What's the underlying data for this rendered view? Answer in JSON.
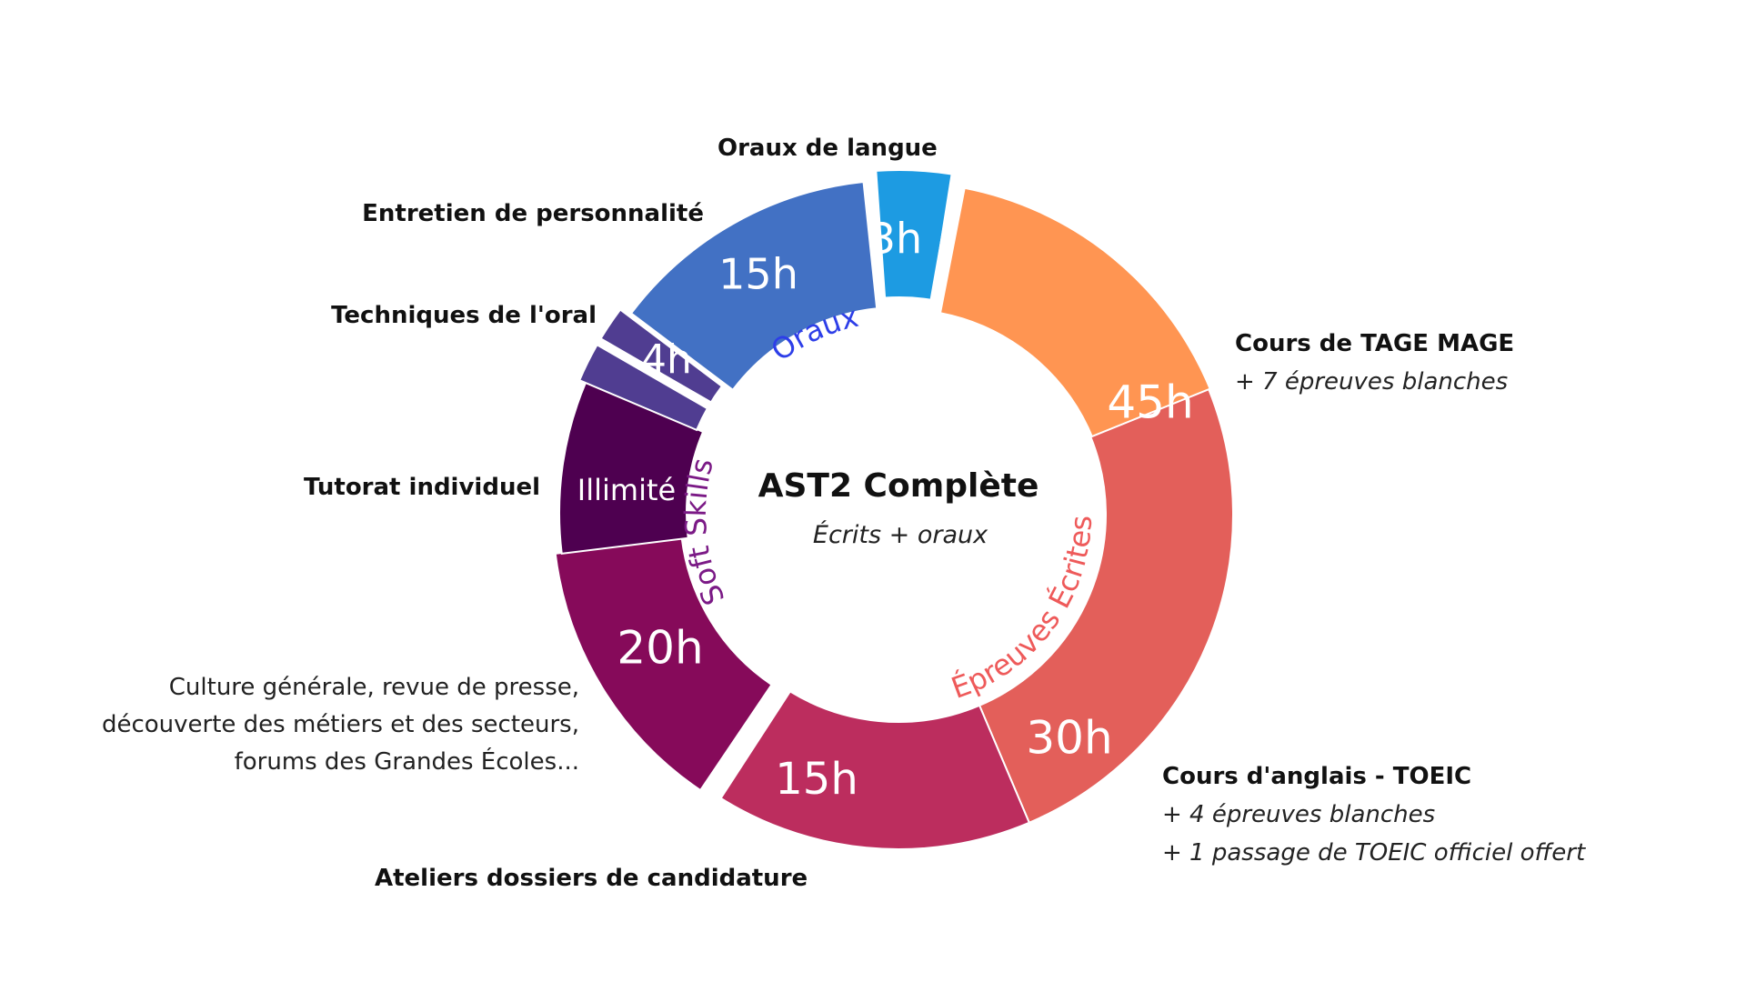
{
  "chart_data": {
    "type": "pie",
    "variant": "donut",
    "title": "AST2 Complète",
    "subtitle": "Écrits + oraux",
    "groups": [
      {
        "name": "Oraux",
        "color": "#2d3ee8"
      },
      {
        "name": "Soft Skills",
        "color": "#7b1a86"
      },
      {
        "name": "Épreuves Écrites",
        "color": "#ee5a5a"
      }
    ],
    "segments": [
      {
        "category": "Oraux de langue",
        "value_label": "3h",
        "hours": 3,
        "color": "#1d9be2"
      },
      {
        "category": "Cours de TAGE MAGE",
        "value_label": "45h",
        "hours": 45,
        "color": "#ff9552"
      },
      {
        "category": "Cours d'anglais - TOEIC",
        "value_label": "30h",
        "hours": 30,
        "color": "#e35f5a"
      },
      {
        "category": "Ateliers dossiers de candidature",
        "value_label": "15h",
        "hours": 15,
        "color": "#bc2d5e"
      },
      {
        "category": "Culture générale",
        "value_label": "20h",
        "hours": 20,
        "color": "#860a5a"
      },
      {
        "category": "Tutorat individuel",
        "value_label": "Illimité",
        "hours": null,
        "color": "#4e0050"
      },
      {
        "category": "Techniques de l'oral",
        "value_label": "4h",
        "hours": 4,
        "color": "#503d91"
      },
      {
        "category": "Entretien de personnalité",
        "value_label": "15h",
        "hours": 15,
        "color": "#4271c4"
      }
    ]
  },
  "labels": {
    "oraux_langue": "Oraux de langue",
    "entretien": "Entretien de personnalité",
    "techniques": "Techniques de l'oral",
    "tutorat": "Tutorat individuel",
    "tage_title": "Cours de TAGE MAGE",
    "tage_sub": "+ 7 épreuves blanches",
    "toeic_title": "Cours d'anglais - TOEIC",
    "toeic_sub1": "+ 4 épreuves blanches",
    "toeic_sub2": "+ 1 passage de TOEIC officiel offert",
    "ateliers": "Ateliers dossiers de candidature",
    "culture_line1": "Culture générale, revue de presse,",
    "culture_line2": "découverte des métiers et des secteurs,",
    "culture_line3": "forums des Grandes Écoles..."
  }
}
